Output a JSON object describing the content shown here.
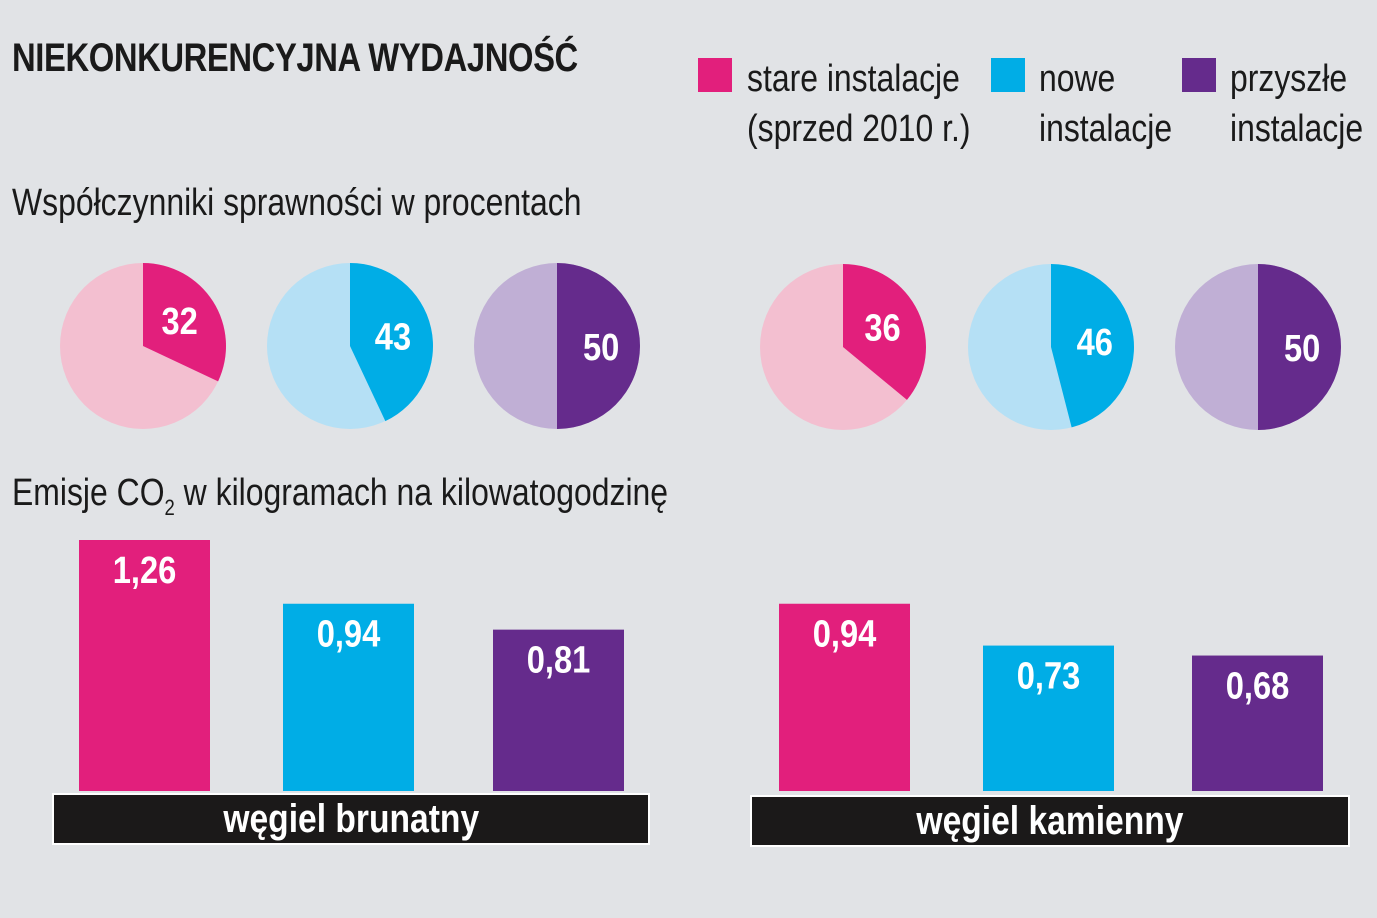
{
  "title": "NIEKONKURENCYJNA WYDAJNOŚĆ",
  "legend": [
    {
      "line1": "stare instalacje",
      "line2": "(sprzed 2010 r.)",
      "color": "#e21f7c"
    },
    {
      "line1": "nowe",
      "line2": "instalacje",
      "color": "#00ade6"
    },
    {
      "line1": "przyszłe",
      "line2": "instalacje",
      "color": "#652b8c"
    }
  ],
  "efficiency_title": "Współczynniki sprawności w procentach",
  "emissions_title": {
    "before": "Emisje CO",
    "sub": "2",
    "after": " w kilogramach na kilowatogodzinę"
  },
  "light_colors": [
    "#f3bfd0",
    "#b5e0f5",
    "#c0afd5"
  ],
  "chart_data": [
    {
      "type": "pie",
      "title": "Współczynniki sprawności w procentach",
      "groups": [
        {
          "name": "węgiel brunatny",
          "values": [
            32,
            43,
            50
          ],
          "labels": [
            "32",
            "43",
            "50"
          ]
        },
        {
          "name": "węgiel kamienny",
          "values": [
            36,
            46,
            50
          ],
          "labels": [
            "36",
            "46",
            "50"
          ]
        }
      ],
      "series": [
        "stare instalacje (sprzed 2010 r.)",
        "nowe instalacje",
        "przyszłe instalacje"
      ],
      "unit": "%"
    },
    {
      "type": "bar",
      "title": "Emisje CO2 w kilogramach na kilowatogodzinę",
      "categories": [
        "węgiel brunatny",
        "węgiel kamienny"
      ],
      "series": [
        {
          "name": "stare instalacje (sprzed 2010 r.)",
          "values": [
            1.26,
            0.94
          ],
          "labels": [
            "1,26",
            "0,94"
          ]
        },
        {
          "name": "nowe instalacje",
          "values": [
            0.94,
            0.73
          ],
          "labels": [
            "0,94",
            "0,73"
          ]
        },
        {
          "name": "przyszłe instalacje",
          "values": [
            0.81,
            0.68
          ],
          "labels": [
            "0,81",
            "0,68"
          ]
        }
      ],
      "ylim": [
        0,
        1.26
      ]
    }
  ]
}
